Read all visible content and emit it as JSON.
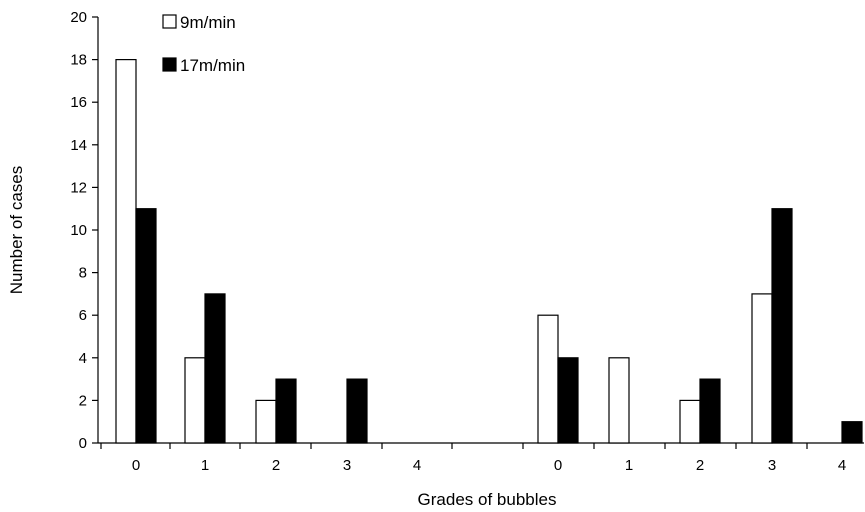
{
  "chart_data": {
    "type": "bar",
    "categories": [
      "0",
      "1",
      "2",
      "3",
      "4",
      "0",
      "1",
      "2",
      "3",
      "4"
    ],
    "series": [
      {
        "name": "9m/min",
        "values": [
          18,
          4,
          2,
          0,
          0,
          6,
          4,
          2,
          7,
          0
        ],
        "fill": "#ffffff",
        "stroke": "#000000"
      },
      {
        "name": "17m/min",
        "values": [
          11,
          7,
          3,
          3,
          0,
          4,
          0,
          3,
          11,
          1
        ],
        "fill": "#000000",
        "stroke": "#000000"
      }
    ],
    "xlabel": "Grades of bubbles",
    "ylabel": "Number of cases",
    "ylim": [
      0,
      20
    ],
    "yticks": [
      "0",
      "2",
      "4",
      "6",
      "8",
      "10",
      "12",
      "14",
      "16",
      "18",
      "20"
    ],
    "grid": false,
    "legend_position": "top-left"
  }
}
